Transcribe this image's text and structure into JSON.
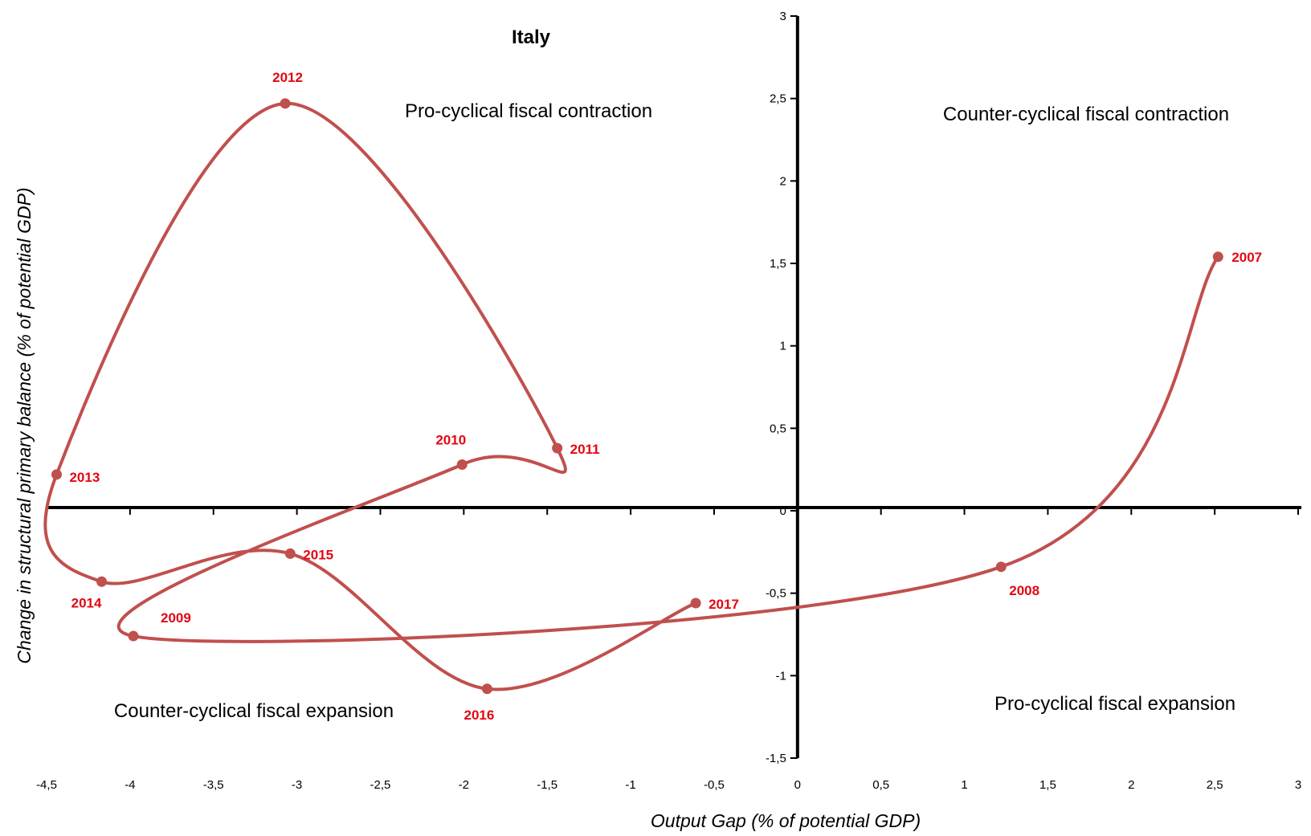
{
  "chart_data": {
    "type": "scatter",
    "title": "Italy",
    "xlabel": "Output Gap (% of potential GDP)",
    "ylabel": "Change in structural primary balance (% of potential GDP)",
    "xlim": [
      -4.5,
      3
    ],
    "ylim": [
      -1.5,
      3
    ],
    "x_ticks": [
      "-4,5",
      "-4",
      "-3,5",
      "-3",
      "-2,5",
      "-2",
      "-1,5",
      "-1",
      "-0,5",
      "0",
      "0,5",
      "1",
      "1,5",
      "2",
      "2,5",
      "3"
    ],
    "y_ticks": [
      "-1,5",
      "-1",
      "-0,5",
      "0",
      "0,5",
      "1",
      "1,5",
      "2",
      "2,5",
      "3"
    ],
    "series": [
      {
        "color": "#c0504d",
        "points": [
          {
            "label": "2007",
            "x": 2.52,
            "y": 1.54
          },
          {
            "label": "2008",
            "x": 1.22,
            "y": -0.34
          },
          {
            "label": "2009",
            "x": -3.98,
            "y": -0.76
          },
          {
            "label": "2010",
            "x": -2.01,
            "y": 0.28
          },
          {
            "label": "2011",
            "x": -1.44,
            "y": 0.38
          },
          {
            "label": "2012",
            "x": -3.07,
            "y": 2.47
          },
          {
            "label": "2013",
            "x": -4.44,
            "y": 0.22
          },
          {
            "label": "2014",
            "x": -4.17,
            "y": -0.43
          },
          {
            "label": "2015",
            "x": -3.04,
            "y": -0.26
          },
          {
            "label": "2016",
            "x": -1.86,
            "y": -1.08
          },
          {
            "label": "2017",
            "x": -0.61,
            "y": -0.56
          }
        ]
      }
    ],
    "annotations": {
      "top_left": "Pro-cyclical fiscal contraction",
      "top_right": "Counter-cyclical  fiscal contraction",
      "bottom_left": "Counter-cyclical fiscal expansion",
      "bottom_right": "Pro-cyclical fiscal expansion"
    },
    "grid": false
  }
}
